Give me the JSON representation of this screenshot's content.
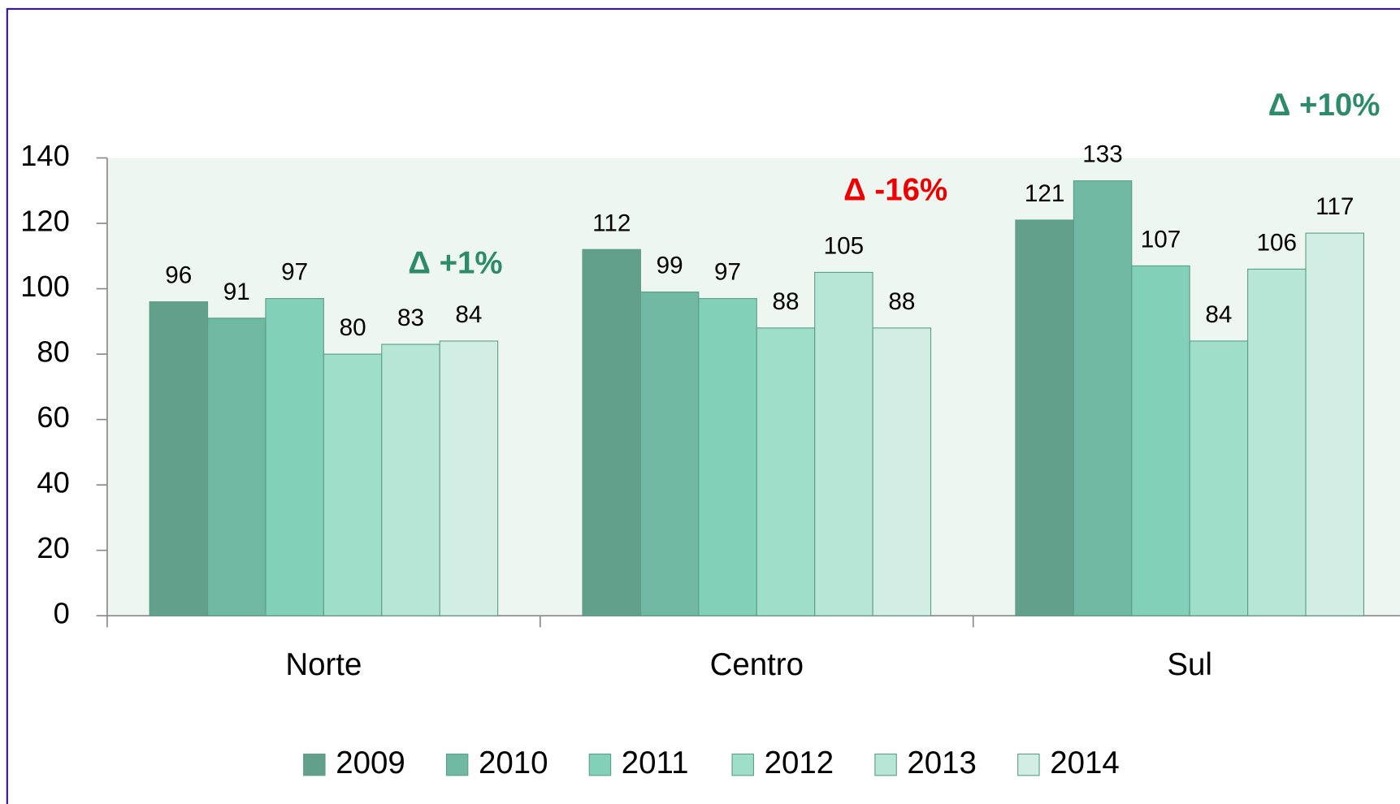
{
  "chart_data": {
    "type": "bar",
    "categories": [
      "Norte",
      "Centro",
      "Sul"
    ],
    "series": [
      {
        "name": "2009",
        "color": "#62a08c",
        "values": [
          96,
          112,
          121
        ]
      },
      {
        "name": "2010",
        "color": "#70b8a2",
        "values": [
          91,
          99,
          133
        ]
      },
      {
        "name": "2011",
        "color": "#82d0b8",
        "values": [
          97,
          97,
          107
        ]
      },
      {
        "name": "2012",
        "color": "#9fdec9",
        "values": [
          80,
          88,
          84
        ]
      },
      {
        "name": "2013",
        "color": "#b7e5d6",
        "values": [
          83,
          105,
          106
        ]
      },
      {
        "name": "2014",
        "color": "#d2ede3",
        "values": [
          84,
          88,
          117
        ]
      }
    ],
    "ylim": [
      0,
      140
    ],
    "yticks": [
      0,
      20,
      40,
      60,
      80,
      100,
      120,
      140
    ],
    "annotations": [
      {
        "text": "Δ +1%",
        "color": "#2e8b6a"
      },
      {
        "text": "Δ -16%",
        "color": "#ee0000"
      },
      {
        "text": "Δ +10%",
        "color": "#2e8b6a"
      }
    ],
    "legend": "bottom"
  }
}
